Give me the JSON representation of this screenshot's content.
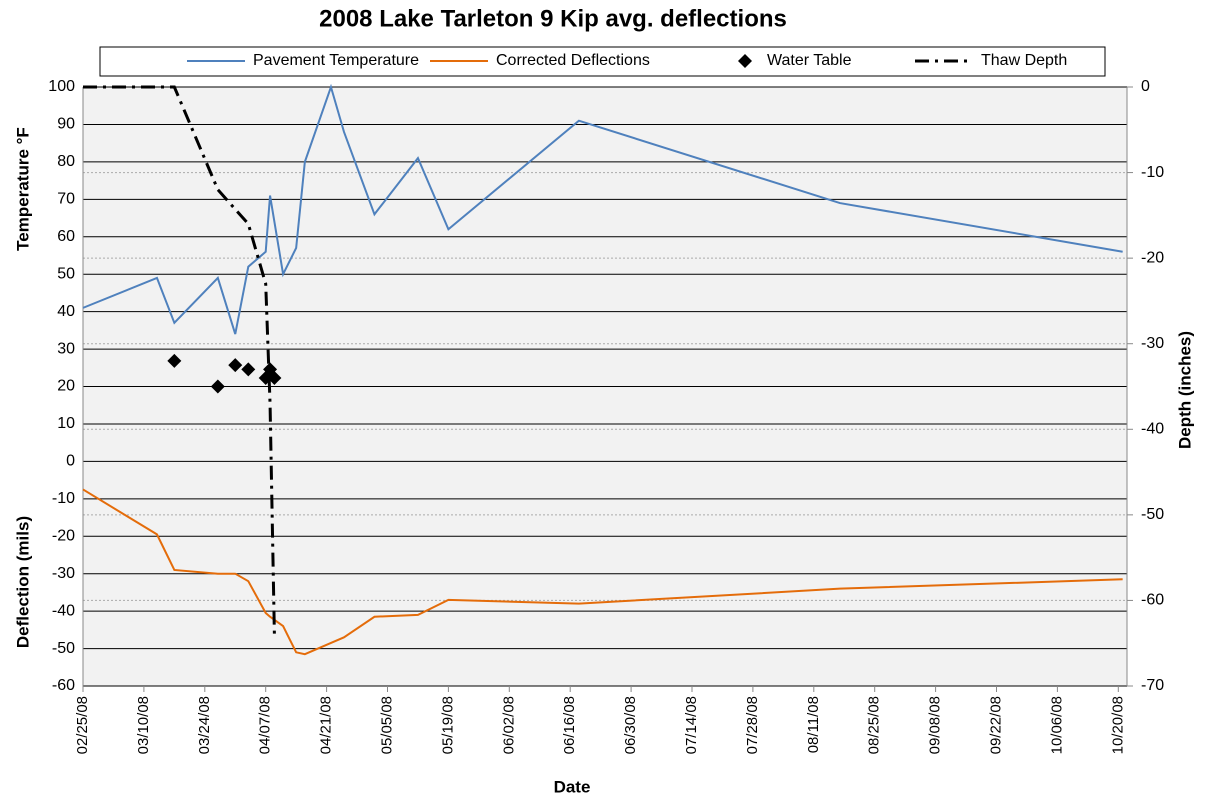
{
  "chart_data": {
    "type": "line",
    "title": "2008 Lake Tarleton 9 Kip avg. deflections",
    "ylabel": [
      "Temperature °F",
      "Deflection (mils)"
    ],
    "y2label": "Depth (inches)",
    "xlabel": "Date",
    "xlim": [
      "2008-02-25",
      "2008-10-22"
    ],
    "xticks": [
      {
        "value": "2008-02-25",
        "label": "02/25/08"
      },
      {
        "value": "2008-03-10",
        "label": "03/10/08"
      },
      {
        "value": "2008-03-24",
        "label": "03/24/08"
      },
      {
        "value": "2008-04-07",
        "label": "04/07/08"
      },
      {
        "value": "2008-04-21",
        "label": "04/21/08"
      },
      {
        "value": "2008-05-05",
        "label": "05/05/08"
      },
      {
        "value": "2008-05-19",
        "label": "05/19/08"
      },
      {
        "value": "2008-06-02",
        "label": "06/02/08"
      },
      {
        "value": "2008-06-16",
        "label": "06/16/08"
      },
      {
        "value": "2008-06-30",
        "label": "06/30/08"
      },
      {
        "value": "2008-07-14",
        "label": "07/14/08"
      },
      {
        "value": "2008-07-28",
        "label": "07/28/08"
      },
      {
        "value": "2008-08-11",
        "label": "08/11/08"
      },
      {
        "value": "2008-08-25",
        "label": "08/25/08"
      },
      {
        "value": "2008-09-08",
        "label": "09/08/08"
      },
      {
        "value": "2008-09-22",
        "label": "09/22/08"
      },
      {
        "value": "2008-10-06",
        "label": "10/06/08"
      },
      {
        "value": "2008-10-20",
        "label": "10/20/08"
      }
    ],
    "ylim": [
      -60,
      100
    ],
    "yticks": [
      -60,
      -50,
      -40,
      -30,
      -20,
      -10,
      0,
      10,
      20,
      30,
      40,
      50,
      60,
      70,
      80,
      90,
      100
    ],
    "y2lim": [
      -70,
      0
    ],
    "y2ticks": [
      -70,
      -60,
      -50,
      -40,
      -30,
      -20,
      -10,
      0
    ],
    "grid": true,
    "legend": "top",
    "series": [
      {
        "name": "Pavement Temperature",
        "color": "#4f81bd",
        "style": "solid",
        "x": [
          "2008-02-25",
          "2008-03-13",
          "2008-03-17",
          "2008-03-27",
          "2008-03-31",
          "2008-04-03",
          "2008-04-07",
          "2008-04-08",
          "2008-04-11",
          "2008-04-14",
          "2008-04-16",
          "2008-04-22",
          "2008-04-25",
          "2008-05-02",
          "2008-05-12",
          "2008-05-19",
          "2008-06-18",
          "2008-08-17",
          "2008-10-21"
        ],
        "values": [
          41,
          49,
          37,
          49,
          34,
          52,
          56,
          71,
          50,
          57,
          80,
          100,
          88,
          66,
          81,
          62,
          91,
          69,
          56
        ]
      },
      {
        "name": "Corrected Deflections",
        "color": "#e46c0a",
        "style": "solid",
        "x": [
          "2008-02-25",
          "2008-03-13",
          "2008-03-17",
          "2008-03-27",
          "2008-03-31",
          "2008-04-03",
          "2008-04-07",
          "2008-04-08",
          "2008-04-11",
          "2008-04-14",
          "2008-04-16",
          "2008-04-22",
          "2008-04-25",
          "2008-05-02",
          "2008-05-12",
          "2008-05-19",
          "2008-06-18",
          "2008-08-17",
          "2008-10-21"
        ],
        "values": [
          -7.5,
          -19.5,
          -29,
          -30,
          -30,
          -32,
          -40.5,
          -41.5,
          -44,
          -51,
          -51.5,
          -48.5,
          -47,
          -41.5,
          -41,
          -37,
          -38,
          -34,
          -31.5
        ]
      },
      {
        "name": "Water Table",
        "color": "#000000",
        "style": "markers",
        "axis": "y2",
        "x": [
          "2008-03-17",
          "2008-03-27",
          "2008-03-31",
          "2008-04-03",
          "2008-04-07",
          "2008-04-08",
          "2008-04-09"
        ],
        "values": [
          -32,
          -35,
          -32.5,
          -33,
          -34,
          -33,
          -34
        ]
      },
      {
        "name": "Thaw Depth",
        "color": "#000000",
        "style": "dash-dot",
        "axis": "y2",
        "x": [
          "2008-02-25",
          "2008-03-17",
          "2008-03-27",
          "2008-04-03",
          "2008-04-07",
          "2008-04-08",
          "2008-04-09"
        ],
        "values": [
          0,
          0,
          -12,
          -16,
          -23,
          -37,
          -64
        ]
      }
    ]
  }
}
